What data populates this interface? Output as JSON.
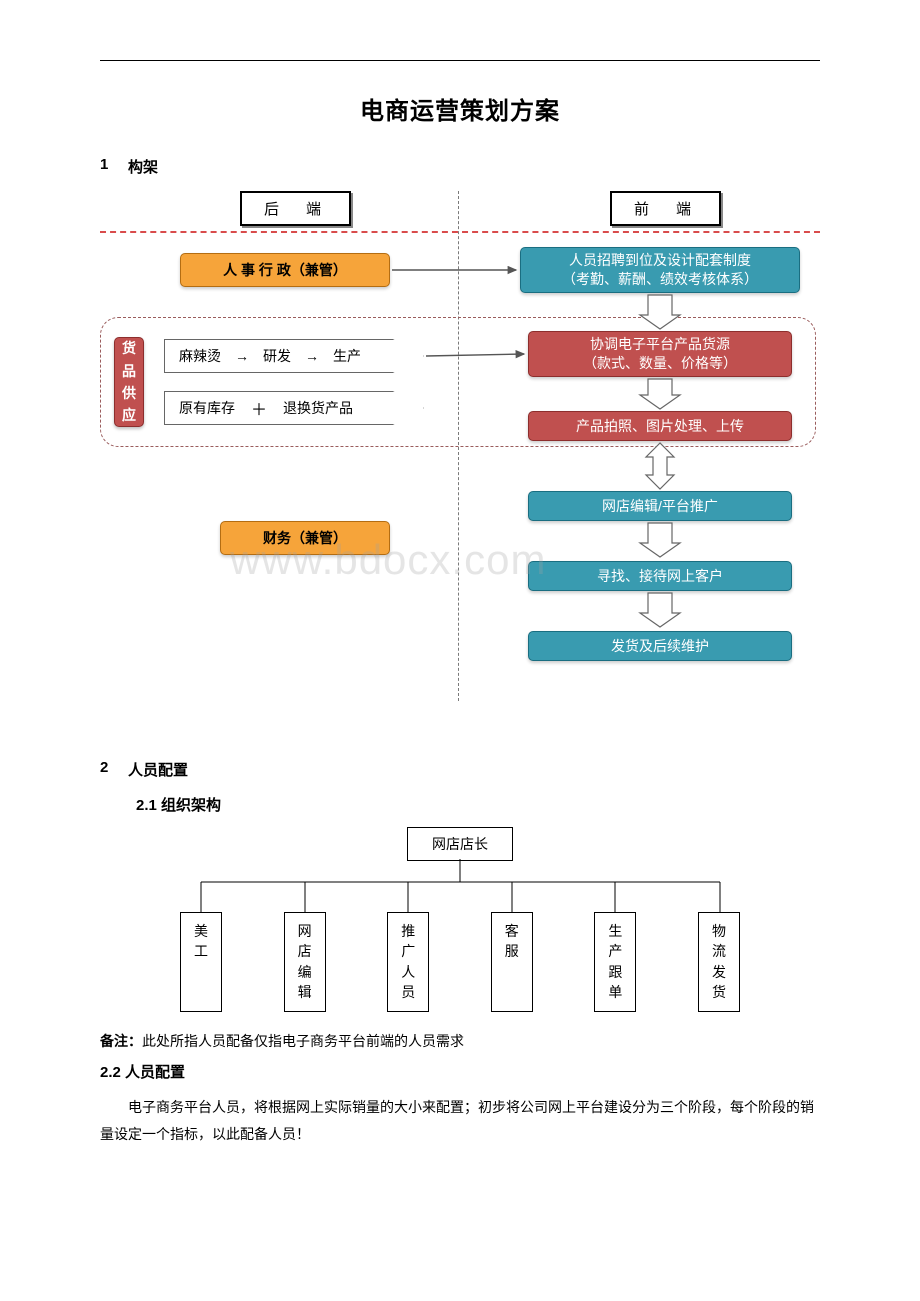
{
  "title": "电商运营策划方案",
  "section1": {
    "num": "1",
    "label": "构架"
  },
  "section2": {
    "num": "2",
    "label": "人员配置"
  },
  "section2_1": "2.1 组织架构",
  "section2_2": "2.2 人员配置",
  "note_label": "备注：",
  "note_text": "此处所指人员配备仅指电子商务平台前端的人员需求",
  "body22": "电子商务平台人员，将根据网上实际销量的大小来配置；初步将公司网上平台建设分为三个阶段，每个阶段的销量设定一个指标，以此配备人员！",
  "flow": {
    "hdr_back": "后　端",
    "hdr_front": "前　端",
    "hr_admin": "人 事 行 政（兼管）",
    "finance": "财务（兼管）",
    "supply_label": "货品供应",
    "pent1": {
      "a": "麻辣烫",
      "b": "研发",
      "c": "生产"
    },
    "pent2": {
      "a": "原有库存",
      "b": "退换货产品"
    },
    "r1a": "人员招聘到位及设计配套制度",
    "r1b": "（考勤、薪酬、绩效考核体系）",
    "r2a": "协调电子平台产品货源",
    "r2b": "（款式、数量、价格等）",
    "r3": "产品拍照、图片处理、上传",
    "r4": "网店编辑/平台推广",
    "r5": "寻找、接待网上客户",
    "r6": "发货及后续维护"
  },
  "watermark": "www.bdocx.com",
  "org": {
    "top": "网店店长",
    "children": [
      "美工",
      "网店编辑",
      "推广人员",
      "客服",
      "生产跟单",
      "物流发货"
    ]
  },
  "colors": {
    "teal": "#399bb0",
    "red": "#c0504f",
    "orange": "#f6a43a",
    "dash_red": "#d94b4b",
    "gray": "#7a7a7a"
  }
}
